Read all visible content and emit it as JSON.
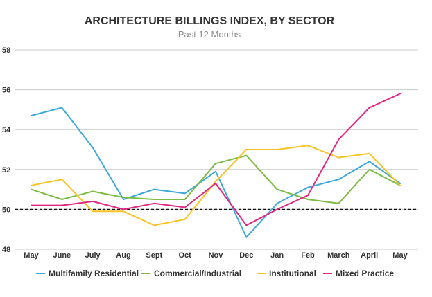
{
  "chart_data": {
    "type": "line",
    "title": "ARCHITECTURE BILLINGS INDEX, BY SECTOR",
    "subtitle": "Past 12 Months",
    "categories": [
      "May",
      "June",
      "July",
      "Aug",
      "Sept",
      "Oct",
      "Nov",
      "Dec",
      "Jan",
      "Feb",
      "March",
      "April",
      "May"
    ],
    "ylim": [
      48,
      58
    ],
    "yticks": [
      48,
      50,
      52,
      54,
      56,
      58
    ],
    "grid": true,
    "reference_line": 50,
    "legend_position": "bottom",
    "series": [
      {
        "name": "Multifamily Residential",
        "color": "#3ea8d8",
        "values": [
          54.7,
          55.1,
          53.1,
          50.5,
          51.0,
          50.8,
          51.9,
          48.6,
          50.3,
          51.1,
          51.5,
          52.4,
          51.3
        ]
      },
      {
        "name": "Commercial/Industrial",
        "color": "#7dbb42",
        "values": [
          51.0,
          50.5,
          50.9,
          50.6,
          50.5,
          50.5,
          52.3,
          52.7,
          51.0,
          50.5,
          50.3,
          52.0,
          51.2
        ]
      },
      {
        "name": "Institutional",
        "color": "#f7c325",
        "values": [
          51.2,
          51.5,
          49.9,
          49.9,
          49.2,
          49.5,
          51.4,
          53.0,
          53.0,
          53.2,
          52.6,
          52.8,
          51.2
        ]
      },
      {
        "name": "Mixed Practice",
        "color": "#e0267f",
        "values": [
          50.2,
          50.2,
          50.4,
          50.0,
          50.3,
          50.1,
          51.3,
          49.2,
          50.0,
          50.7,
          53.5,
          55.1,
          55.8
        ]
      }
    ]
  }
}
